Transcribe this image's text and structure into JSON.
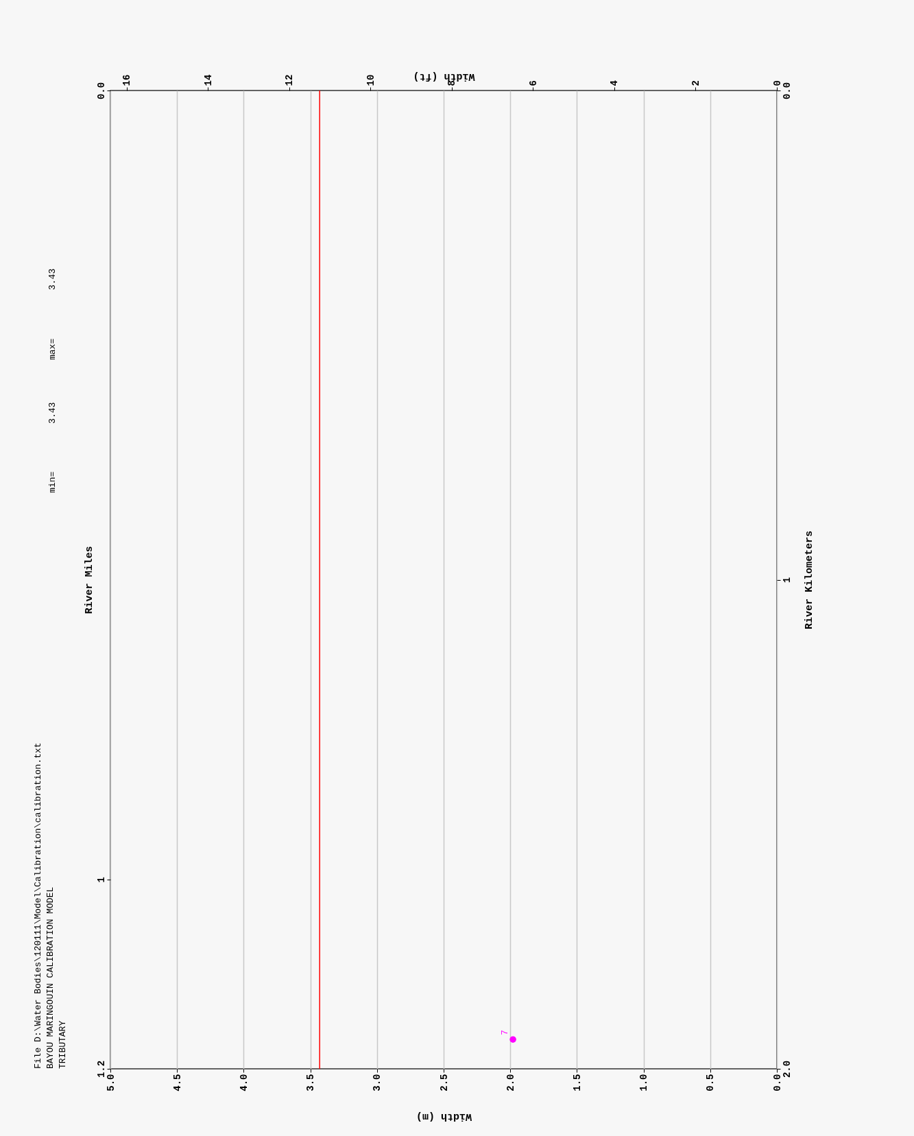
{
  "chart_data": {
    "type": "scatter",
    "title": "File D:\\Water Bodies\\120111\\Model\\Calibration\\calibration.txt",
    "subtitle": "BAYOU MARINGOUIN CALIBRATION MODEL\nTRIBUTARY",
    "xlabel": "Width (m)",
    "x2label": "Width (ft)",
    "ylabel": "River Miles",
    "y2label": "River Kilometers",
    "xlim": [
      5,
      0
    ],
    "xticks": [
      {
        "value": 5,
        "label": "5.0"
      },
      {
        "value": 4.5,
        "label": "4.5"
      },
      {
        "value": 4,
        "label": "4.0"
      },
      {
        "value": 3.5,
        "label": "3.5"
      },
      {
        "value": 3,
        "label": "3.0"
      },
      {
        "value": 2.5,
        "label": "2.5"
      },
      {
        "value": 2,
        "label": "2.0"
      },
      {
        "value": 1.5,
        "label": "1.5"
      },
      {
        "value": 1,
        "label": "1.0"
      },
      {
        "value": 0.5,
        "label": "0.5"
      },
      {
        "value": 0,
        "label": "0.0"
      }
    ],
    "x2lim": [
      16.4,
      0
    ],
    "x2ticks": [
      16,
      14,
      12,
      10,
      8,
      6,
      4,
      2,
      0
    ],
    "ylim": [
      1.24,
      0
    ],
    "yticks": [
      {
        "value": 1.24,
        "label": "1.2"
      },
      1,
      {
        "value": 0,
        "label": "0.0"
      }
    ],
    "y2lim": [
      2,
      0
    ],
    "y2ticks": [
      {
        "value": 2,
        "label": "2.0"
      },
      1,
      {
        "value": 0,
        "label": "0.0"
      }
    ],
    "grid": "x",
    "series": [
      {
        "axis": "y2",
        "color": "#ff00ff",
        "marker": "circle",
        "x": [
          1.98
        ],
        "values": [
          1.94
        ]
      }
    ],
    "ref_lines": [
      {
        "axis": "x",
        "value": 3.43,
        "color": "#ff0000"
      }
    ],
    "annotations": [
      "min=",
      "3.43",
      "max=",
      "3.43",
      "7"
    ]
  }
}
